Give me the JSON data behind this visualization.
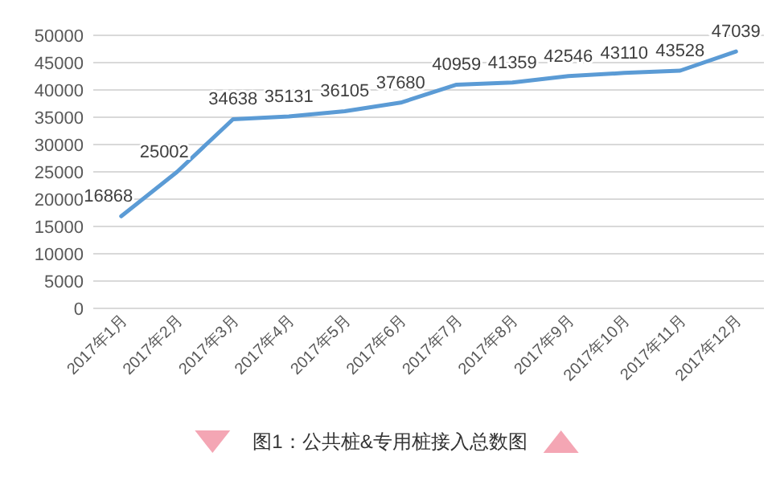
{
  "chart_data": {
    "type": "line",
    "categories": [
      "2017年1月",
      "2017年2月",
      "2017年3月",
      "2017年4月",
      "2017年5月",
      "2017年6月",
      "2017年7月",
      "2017年8月",
      "2017年9月",
      "2017年10月",
      "2017年11月",
      "2017年12月"
    ],
    "series": [
      {
        "color": "#5b9bd5",
        "values": [
          16868,
          25002,
          34638,
          35131,
          36105,
          37680,
          40959,
          41359,
          42546,
          43110,
          43528,
          47039
        ]
      }
    ],
    "ylim": [
      0,
      50000
    ],
    "yticks": [
      0,
      5000,
      10000,
      15000,
      20000,
      25000,
      30000,
      35000,
      40000,
      45000,
      50000
    ],
    "grid": "y",
    "data_labels": true,
    "annotations": [
      "图1：公共桩&专用桩接入总数图"
    ]
  }
}
